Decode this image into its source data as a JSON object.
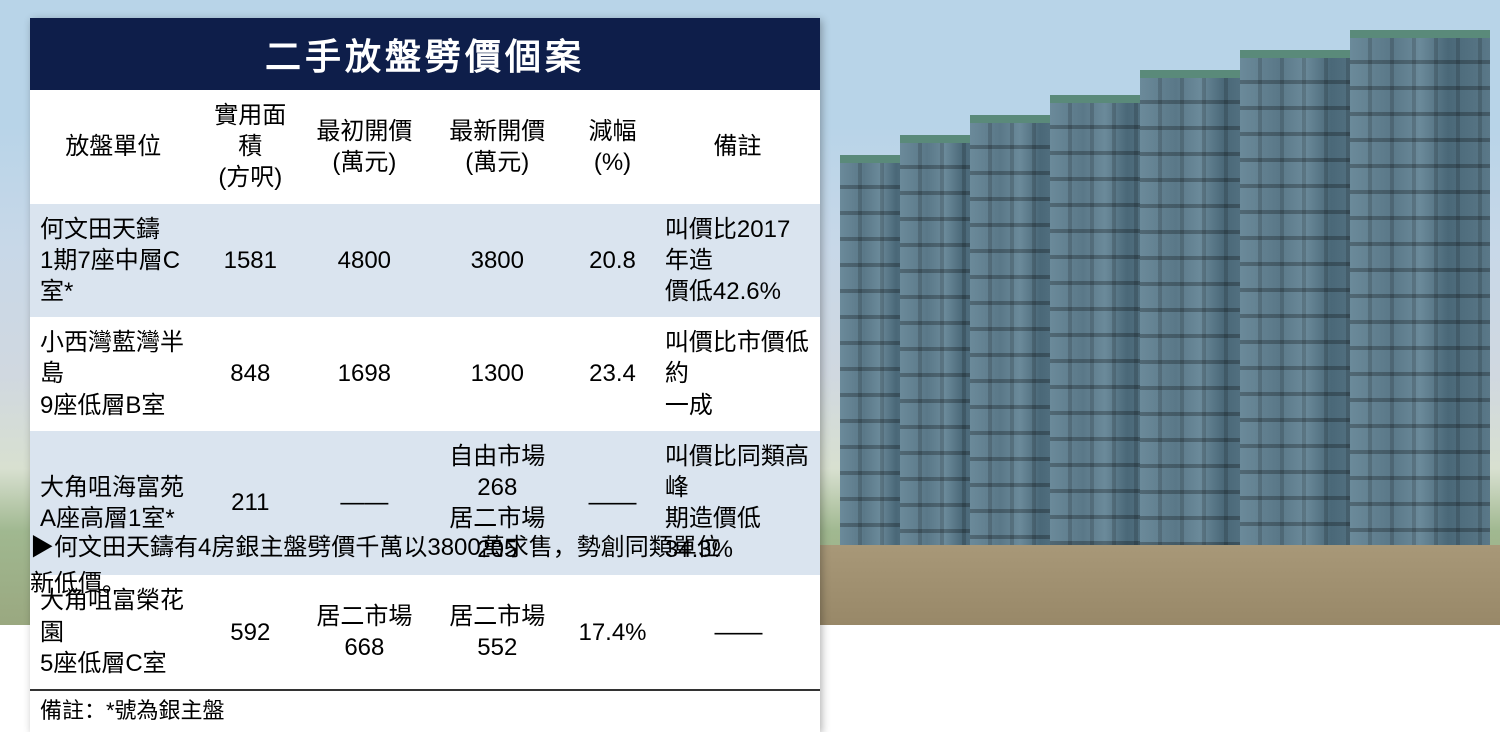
{
  "title": "二手放盤劈價個案",
  "table": {
    "columns": [
      {
        "label_line1": "放盤單位",
        "label_line2": ""
      },
      {
        "label_line1": "實用面積",
        "label_line2": "(方呎)"
      },
      {
        "label_line1": "最初開價",
        "label_line2": "(萬元)"
      },
      {
        "label_line1": "最新開價",
        "label_line2": "(萬元)"
      },
      {
        "label_line1": "減幅",
        "label_line2": "(%)"
      },
      {
        "label_line1": "備註",
        "label_line2": ""
      }
    ],
    "rows": [
      {
        "unit_line1": "何文田天鑄",
        "unit_line2": "1期7座中層C室*",
        "area": "1581",
        "initial": "4800",
        "latest": "3800",
        "drop": "20.8",
        "remark_line1": "叫價比2017年造",
        "remark_line2": "價低42.6%",
        "bg": "odd"
      },
      {
        "unit_line1": "小西灣藍灣半島",
        "unit_line2": "9座低層B室",
        "area": "848",
        "initial": "1698",
        "latest": "1300",
        "drop": "23.4",
        "remark_line1": "叫價比市價低約",
        "remark_line2": "一成",
        "bg": "even"
      },
      {
        "unit_line1": "大角咀海富苑",
        "unit_line2": "A座高層1室*",
        "area": "211",
        "initial": "——",
        "latest_line1": "自由市場268",
        "latest_line2": "居二市場205",
        "drop": "——",
        "remark_line1": "叫價比同類高峰",
        "remark_line2": "期造價低34.3%",
        "bg": "odd"
      },
      {
        "unit_line1": "大角咀富榮花園",
        "unit_line2": "5座低層C室",
        "area": "592",
        "initial": "居二市場668",
        "latest": "居二市場552",
        "drop": "17.4%",
        "remark_line1": "——",
        "remark_line2": "",
        "bg": "even"
      }
    ],
    "footnote": "備註：*號為銀主盤"
  },
  "caption": "▶何文田天鑄有4房銀主盤劈價千萬以3800萬求售，勢創同類單位新低價。",
  "colors": {
    "title_bg": "#0e1e4a",
    "title_text": "#ffffff",
    "row_odd_bg": "#dae4ef",
    "row_even_bg": "#ffffff",
    "text": "#000000"
  }
}
